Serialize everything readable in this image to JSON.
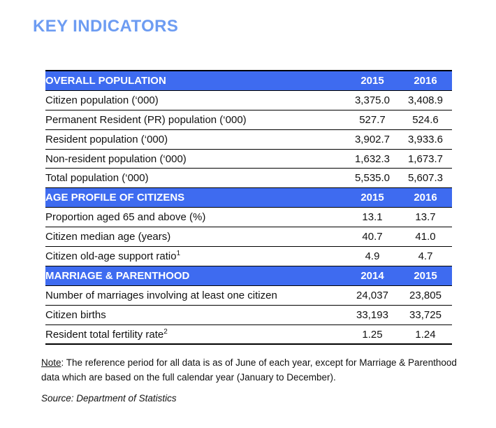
{
  "page": {
    "title": "KEY INDICATORS",
    "source": "Source: Department of Statistics"
  },
  "note": {
    "label": "Note",
    "line1": ": The reference period for all data is as of June of each year, except for Marriage & Parenthood",
    "line2": "data which are based on the full calendar year (January to December)."
  },
  "colors": {
    "title_blue": "#6D9CF2",
    "header_bar_blue": "#3E6BF0",
    "header_text": "#FFFFFF",
    "border": "#000000"
  },
  "table": {
    "sections": [
      {
        "header": {
          "label": "OVERALL POPULATION",
          "col1": "2015",
          "col2": "2016"
        },
        "rows": [
          {
            "label": "Citizen population (‘000)",
            "v1": "3,375.0",
            "v2": "3,408.9"
          },
          {
            "label": "Permanent Resident (PR) population (‘000)",
            "v1": "527.7",
            "v2": "524.6"
          },
          {
            "label": "Resident population (‘000)",
            "v1": "3,902.7",
            "v2": "3,933.6"
          },
          {
            "label": "Non-resident population (‘000)",
            "v1": "1,632.3",
            "v2": "1,673.7"
          },
          {
            "label": "Total population (‘000)",
            "v1": "5,535.0",
            "v2": "5,607.3"
          }
        ]
      },
      {
        "header": {
          "label": "AGE PROFILE OF CITIZENS",
          "col1": "2015",
          "col2": "2016"
        },
        "rows": [
          {
            "label": "Proportion aged 65 and above (%)",
            "v1": "13.1",
            "v2": "13.7"
          },
          {
            "label": "Citizen median age (years)",
            "v1": "40.7",
            "v2": "41.0"
          },
          {
            "label": "Citizen old-age support ratio",
            "sup": "1",
            "v1": "4.9",
            "v2": "4.7"
          }
        ]
      },
      {
        "header": {
          "label": "MARRIAGE & PARENTHOOD",
          "col1": "2014",
          "col2": "2015"
        },
        "rows": [
          {
            "label": "Number of marriages involving at least one citizen",
            "v1": "24,037",
            "v2": "23,805"
          },
          {
            "label": "Citizen births",
            "v1": "33,193",
            "v2": "33,725"
          },
          {
            "label": "Resident total fertility rate",
            "sup": "2",
            "v1": "1.25",
            "v2": "1.24"
          }
        ]
      }
    ]
  }
}
